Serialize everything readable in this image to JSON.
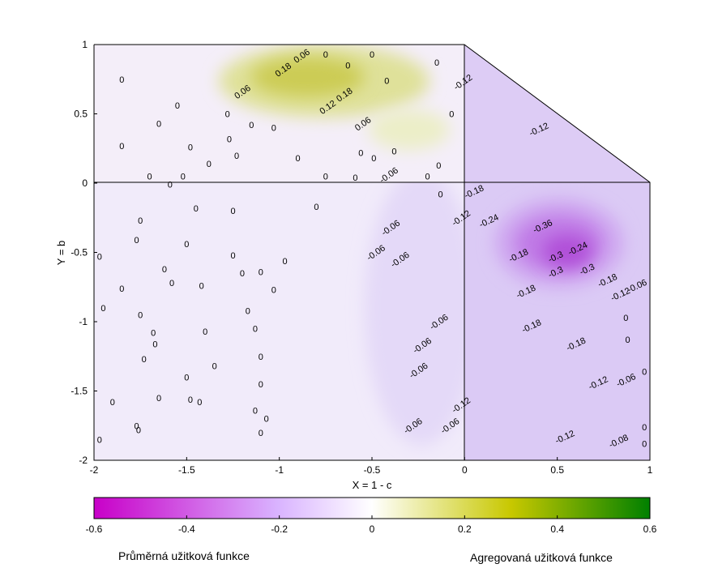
{
  "chart_data": {
    "type": "heatmap",
    "xlabel": "X = 1 - c",
    "ylabel": "Y = b",
    "xlim": [
      -2,
      1
    ],
    "ylim": [
      -2,
      1
    ],
    "xticks": [
      "-2",
      "-1.5",
      "-1",
      "-0.5",
      "0",
      "0.5",
      "1"
    ],
    "yticks": [
      "1",
      "0.5",
      "0",
      "-0.5",
      "-1",
      "-1.5",
      "-2"
    ],
    "colorbar": {
      "range": [
        -0.6,
        0.6
      ],
      "ticks": [
        "-0.6",
        "-0.4",
        "-0.2",
        "0",
        "0.2",
        "0.4",
        "0.6"
      ],
      "colors": {
        "min": "#c800c8",
        "low": "#d9b3ff",
        "mid": "#ffffff",
        "high": "#c8c800",
        "max": "#008000"
      }
    },
    "regions": [
      {
        "name": "top-left",
        "x": [
          -2,
          0
        ],
        "y": [
          0,
          1
        ],
        "base_value": 0.02,
        "peak": {
          "x": [
            -1.0,
            -0.5
          ],
          "y": [
            0.6,
            0.9
          ],
          "value": 0.2
        }
      },
      {
        "name": "top-right-triangle",
        "x": [
          0,
          1
        ],
        "y": [
          0,
          1
        ],
        "base_value": -0.1
      },
      {
        "name": "bottom-left",
        "x": [
          -2,
          0
        ],
        "y": [
          -2,
          0
        ],
        "base_value": -0.05
      },
      {
        "name": "bottom-right",
        "x": [
          0,
          1
        ],
        "y": [
          -2,
          0
        ],
        "base_value": -0.14,
        "peak": {
          "x": [
            0.3,
            0.7
          ],
          "y": [
            -0.6,
            -0.2
          ],
          "value": -0.36
        }
      }
    ],
    "contour_labels": [
      {
        "text": "0.06",
        "x": -0.88,
        "y": 0.92
      },
      {
        "text": "0",
        "x": -0.75,
        "y": 0.93
      },
      {
        "text": "0",
        "x": -0.5,
        "y": 0.93
      },
      {
        "text": "0",
        "x": -0.63,
        "y": 0.85
      },
      {
        "text": "0",
        "x": -0.15,
        "y": 0.87
      },
      {
        "text": "0.18",
        "x": -0.98,
        "y": 0.82
      },
      {
        "text": "0.18",
        "x": -0.65,
        "y": 0.64
      },
      {
        "text": "0.12",
        "x": -0.74,
        "y": 0.55
      },
      {
        "text": "0.06",
        "x": -0.55,
        "y": 0.43
      },
      {
        "text": "0.06",
        "x": -1.2,
        "y": 0.66
      },
      {
        "text": "0",
        "x": -1.85,
        "y": 0.75
      },
      {
        "text": "0",
        "x": -0.42,
        "y": 0.74
      },
      {
        "text": "0",
        "x": -1.55,
        "y": 0.56
      },
      {
        "text": "0",
        "x": -1.28,
        "y": 0.5
      },
      {
        "text": "0",
        "x": -1.65,
        "y": 0.43
      },
      {
        "text": "0",
        "x": -1.15,
        "y": 0.42
      },
      {
        "text": "0",
        "x": -1.03,
        "y": 0.4
      },
      {
        "text": "0",
        "x": -0.07,
        "y": 0.5
      },
      {
        "text": "0",
        "x": -1.27,
        "y": 0.32
      },
      {
        "text": "0",
        "x": -1.85,
        "y": 0.27
      },
      {
        "text": "0",
        "x": -1.48,
        "y": 0.26
      },
      {
        "text": "0",
        "x": -0.38,
        "y": 0.23
      },
      {
        "text": "0",
        "x": -0.56,
        "y": 0.22
      },
      {
        "text": "0",
        "x": -1.23,
        "y": 0.2
      },
      {
        "text": "0",
        "x": -0.9,
        "y": 0.18
      },
      {
        "text": "0",
        "x": -0.49,
        "y": 0.18
      },
      {
        "text": "0",
        "x": -1.38,
        "y": 0.14
      },
      {
        "text": "0",
        "x": -0.14,
        "y": 0.13
      },
      {
        "text": "0",
        "x": -1.7,
        "y": 0.05
      },
      {
        "text": "0",
        "x": -1.52,
        "y": 0.05
      },
      {
        "text": "0",
        "x": -0.75,
        "y": 0.05
      },
      {
        "text": "0",
        "x": -0.59,
        "y": 0.04
      },
      {
        "text": "0",
        "x": -0.2,
        "y": 0.05
      },
      {
        "text": "-0.06",
        "x": -0.41,
        "y": 0.06
      },
      {
        "text": "0",
        "x": -1.59,
        "y": -0.01
      },
      {
        "text": "-0.12",
        "x": -0.01,
        "y": 0.73
      },
      {
        "text": "-0.12",
        "x": 0.4,
        "y": 0.39
      },
      {
        "text": "0",
        "x": -1.45,
        "y": -0.18
      },
      {
        "text": "0",
        "x": -1.25,
        "y": -0.2
      },
      {
        "text": "0",
        "x": -0.8,
        "y": -0.17
      },
      {
        "text": "0",
        "x": -0.13,
        "y": -0.08
      },
      {
        "text": "-0.18",
        "x": 0.05,
        "y": -0.06
      },
      {
        "text": "-0.12",
        "x": -0.02,
        "y": -0.25
      },
      {
        "text": "-0.24",
        "x": 0.13,
        "y": -0.27
      },
      {
        "text": "-0.36",
        "x": 0.42,
        "y": -0.31
      },
      {
        "text": "-0.24",
        "x": 0.61,
        "y": -0.47
      },
      {
        "text": "-0.3",
        "x": 0.49,
        "y": -0.53
      },
      {
        "text": "-0.3",
        "x": 0.66,
        "y": -0.62
      },
      {
        "text": "-0.3",
        "x": 0.49,
        "y": -0.64
      },
      {
        "text": "-0.18",
        "x": 0.29,
        "y": -0.52
      },
      {
        "text": "-0.18",
        "x": 0.77,
        "y": -0.7
      },
      {
        "text": "-0.06",
        "x": 0.93,
        "y": -0.74
      },
      {
        "text": "-0.12",
        "x": 0.84,
        "y": -0.8
      },
      {
        "text": "-0.18",
        "x": 0.33,
        "y": -0.78
      },
      {
        "text": "-0.18",
        "x": 0.36,
        "y": -1.03
      },
      {
        "text": "-0.18",
        "x": 0.6,
        "y": -1.16
      },
      {
        "text": "-0.12",
        "x": 0.72,
        "y": -1.44
      },
      {
        "text": "-0.06",
        "x": 0.87,
        "y": -1.42
      },
      {
        "text": "-0.12",
        "x": 0.54,
        "y": -1.83
      },
      {
        "text": "-0.08",
        "x": 0.83,
        "y": -1.86
      },
      {
        "text": "0",
        "x": 0.87,
        "y": -0.97
      },
      {
        "text": "0",
        "x": 0.88,
        "y": -1.13
      },
      {
        "text": "0",
        "x": 0.97,
        "y": -1.36
      },
      {
        "text": "0",
        "x": 0.97,
        "y": -1.76
      },
      {
        "text": "0",
        "x": 0.97,
        "y": -1.88
      },
      {
        "text": "-0.12",
        "x": -0.02,
        "y": -1.6
      },
      {
        "text": "-0.06",
        "x": -0.4,
        "y": -0.32
      },
      {
        "text": "-0.06",
        "x": -0.35,
        "y": -0.55
      },
      {
        "text": "-0.06",
        "x": -0.48,
        "y": -0.5
      },
      {
        "text": "-0.06",
        "x": -0.14,
        "y": -1.0
      },
      {
        "text": "-0.06",
        "x": -0.23,
        "y": -1.17
      },
      {
        "text": "-0.06",
        "x": -0.25,
        "y": -1.35
      },
      {
        "text": "-0.06",
        "x": -0.28,
        "y": -1.75
      },
      {
        "text": "-0.06",
        "x": -0.08,
        "y": -1.75
      },
      {
        "text": "0",
        "x": -1.75,
        "y": -0.27
      },
      {
        "text": "0",
        "x": -1.77,
        "y": -0.41
      },
      {
        "text": "0",
        "x": -1.5,
        "y": -0.44
      },
      {
        "text": "0",
        "x": -1.97,
        "y": -0.53
      },
      {
        "text": "0",
        "x": -1.25,
        "y": -0.52
      },
      {
        "text": "0",
        "x": -1.62,
        "y": -0.62
      },
      {
        "text": "0",
        "x": -1.2,
        "y": -0.65
      },
      {
        "text": "0",
        "x": -1.1,
        "y": -0.64
      },
      {
        "text": "0",
        "x": -0.97,
        "y": -0.56
      },
      {
        "text": "0",
        "x": -1.58,
        "y": -0.72
      },
      {
        "text": "0",
        "x": -1.42,
        "y": -0.74
      },
      {
        "text": "0",
        "x": -1.85,
        "y": -0.76
      },
      {
        "text": "0",
        "x": -1.03,
        "y": -0.77
      },
      {
        "text": "0",
        "x": -1.95,
        "y": -0.9
      },
      {
        "text": "0",
        "x": -1.75,
        "y": -0.95
      },
      {
        "text": "0",
        "x": -1.17,
        "y": -0.92
      },
      {
        "text": "0",
        "x": -1.68,
        "y": -1.08
      },
      {
        "text": "0",
        "x": -1.4,
        "y": -1.07
      },
      {
        "text": "0",
        "x": -1.13,
        "y": -1.05
      },
      {
        "text": "0",
        "x": -1.67,
        "y": -1.16
      },
      {
        "text": "0",
        "x": -1.73,
        "y": -1.27
      },
      {
        "text": "0",
        "x": -1.1,
        "y": -1.25
      },
      {
        "text": "0",
        "x": -1.35,
        "y": -1.32
      },
      {
        "text": "0",
        "x": -1.5,
        "y": -1.4
      },
      {
        "text": "0",
        "x": -1.1,
        "y": -1.45
      },
      {
        "text": "0",
        "x": -1.65,
        "y": -1.55
      },
      {
        "text": "0",
        "x": -1.48,
        "y": -1.56
      },
      {
        "text": "0",
        "x": -1.43,
        "y": -1.58
      },
      {
        "text": "0",
        "x": -1.9,
        "y": -1.58
      },
      {
        "text": "0",
        "x": -1.13,
        "y": -1.64
      },
      {
        "text": "0",
        "x": -1.07,
        "y": -1.7
      },
      {
        "text": "0",
        "x": -1.77,
        "y": -1.75
      },
      {
        "text": "0",
        "x": -1.76,
        "y": -1.78
      },
      {
        "text": "0",
        "x": -1.1,
        "y": -1.8
      },
      {
        "text": "0",
        "x": -1.97,
        "y": -1.85
      }
    ]
  },
  "captions": {
    "left": "Průměrná užitková funkce",
    "right": "Agregovaná užitková funkce"
  }
}
